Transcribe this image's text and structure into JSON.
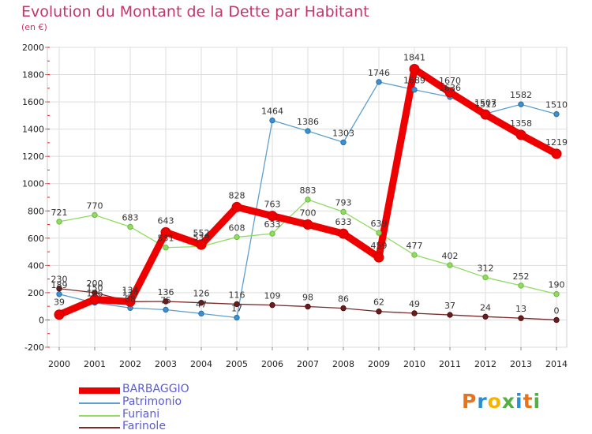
{
  "header": {
    "title": "Evolution du Montant de la Dette par Habitant",
    "subtitle": "(en €)"
  },
  "logo": {
    "text": "Proxiti"
  },
  "colors": {
    "BARBAGGIO": "#ee0000",
    "Patrimonio": "#5ea0cf",
    "Furiani": "#8fdc5f",
    "Farinole": "#7a2a2a",
    "axis_text": "#222222",
    "grid": "#dddddd",
    "title": "#c5346b"
  },
  "chart_data": {
    "type": "line",
    "title": "Evolution du Montant de la Dette par Habitant",
    "subtitle": "(en €)",
    "x": [
      2000,
      2001,
      2002,
      2003,
      2004,
      2005,
      2006,
      2007,
      2008,
      2009,
      2010,
      2011,
      2012,
      2013,
      2014
    ],
    "ylim": [
      -200,
      2000
    ],
    "yticks": [
      -200,
      0,
      200,
      400,
      600,
      800,
      1000,
      1200,
      1400,
      1600,
      1800,
      2000
    ],
    "grid": true,
    "legend_position": "bottom-left",
    "series": [
      {
        "name": "BARBAGGIO",
        "values": [
          39,
          150,
          134,
          643,
          552,
          828,
          763,
          700,
          633,
          459,
          1841,
          1670,
          1507,
          1358,
          1219
        ]
      },
      {
        "name": "Patrimonio",
        "values": [
          189,
          126,
          88,
          75,
          47,
          17,
          null,
          null,
          null,
          1746,
          1689,
          1636,
          1513,
          1582,
          1510
        ],
        "segments": [
          [
            0,
            5
          ],
          [
            5,
            6
          ],
          [
            6,
            7
          ],
          [
            7,
            8
          ],
          [
            8,
            9
          ],
          [
            9,
            14
          ]
        ],
        "extra": {
          "2005": 17,
          "2006": 1464,
          "2007": 1386,
          "2008": 1303
        }
      },
      {
        "name": "Furiani",
        "values": [
          721,
          770,
          683,
          531,
          539,
          608,
          633,
          883,
          793,
          639,
          477,
          402,
          312,
          252,
          190
        ]
      },
      {
        "name": "Farinole",
        "values": [
          230,
          200,
          134,
          136,
          126,
          116,
          109,
          98,
          86,
          62,
          49,
          37,
          24,
          13,
          0
        ]
      }
    ]
  }
}
